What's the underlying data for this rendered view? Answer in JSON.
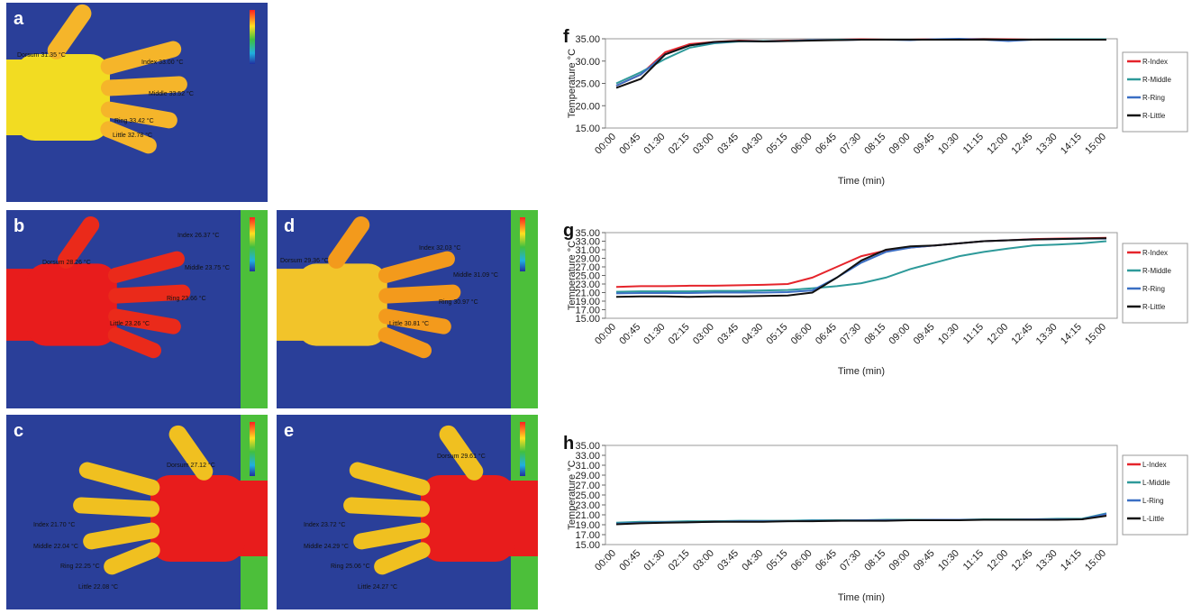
{
  "thermal_panels": [
    {
      "label": "a",
      "annotations": [
        "Dorsum 31.35 °C",
        "Index 33.00 °C",
        "Middle 33.52 °C",
        "Ring 33.42 °C",
        "Little 32.78 °C"
      ]
    },
    {
      "label": "b",
      "annotations": [
        "Dorsum 28.26 °C",
        "Index 26.37 °C",
        "Middle 23.75 °C",
        "Ring 23.66 °C",
        "Little 23.26 °C"
      ]
    },
    {
      "label": "d",
      "annotations": [
        "Dorsum 29.36 °C",
        "Index 32.03 °C",
        "Middle 31.09 °C",
        "Ring 30.97 °C",
        "Little 30.81 °C"
      ]
    },
    {
      "label": "c",
      "annotations": [
        "Dorsum 27.12 °C",
        "Index 21.70 °C",
        "Middle 22.04 °C",
        "Ring 22.25 °C",
        "Little 22.08 °C"
      ]
    },
    {
      "label": "e",
      "annotations": [
        "Dorsum 29.61 °C",
        "Index 23.72 °C",
        "Middle 24.29 °C",
        "Ring 25.06 °C",
        "Little 24.27 °C"
      ]
    }
  ],
  "chart_data": [
    {
      "type": "line",
      "title": "f",
      "x_label": "Time (min)",
      "y_label": "Temperature °C",
      "categories": [
        "00:00",
        "00:45",
        "01:30",
        "02:15",
        "03:00",
        "03:45",
        "04:30",
        "05:15",
        "06:00",
        "06:45",
        "07:30",
        "08:15",
        "09:00",
        "09:45",
        "10:30",
        "11:15",
        "12:00",
        "12:45",
        "13:30",
        "14:15",
        "15:00"
      ],
      "ylim": [
        15,
        35
      ],
      "yticks": [
        {
          "value": 15,
          "label": "15.00"
        },
        {
          "value": 20,
          "label": "20.00"
        },
        {
          "value": 25,
          "label": "25.00"
        },
        {
          "value": 30,
          "label": "30.00"
        },
        {
          "value": 35,
          "label": "35.00"
        }
      ],
      "series": [
        {
          "name": "R-Index",
          "color": "#e5242b",
          "values": [
            24.5,
            27,
            32,
            33.8,
            34.3,
            34.6,
            34.5,
            34.6,
            34.7,
            34.8,
            34.9,
            34.8,
            34.8,
            34.9,
            34.9,
            35,
            34.9,
            34.8,
            34.9,
            34.9,
            34.9
          ]
        },
        {
          "name": "R-Middle",
          "color": "#2e9a9a",
          "values": [
            25,
            27.5,
            30.5,
            33,
            34,
            34.4,
            34.5,
            34.5,
            34.7,
            34.8,
            34.8,
            34.8,
            34.8,
            34.8,
            34.9,
            34.9,
            34.8,
            34.8,
            34.9,
            34.9,
            34.9
          ]
        },
        {
          "name": "R-Ring",
          "color": "#3b6fc4",
          "values": [
            24.5,
            27,
            31.5,
            33.5,
            34.2,
            34.5,
            34.4,
            34.5,
            34.7,
            34.7,
            34.8,
            34.8,
            34.7,
            34.9,
            35,
            34.8,
            34.5,
            34.8,
            34.8,
            34.8,
            34.8
          ]
        },
        {
          "name": "R-Little",
          "color": "#111111",
          "values": [
            24,
            26,
            31.5,
            33.5,
            34.3,
            34.5,
            34.4,
            34.5,
            34.6,
            34.7,
            34.8,
            34.8,
            34.8,
            34.8,
            34.8,
            34.8,
            34.8,
            34.8,
            34.8,
            34.8,
            34.8
          ]
        }
      ]
    },
    {
      "type": "line",
      "title": "g",
      "x_label": "Time (min)",
      "y_label": "Temperature °C",
      "categories": [
        "00:00",
        "00:45",
        "01:30",
        "02:15",
        "03:00",
        "03:45",
        "04:30",
        "05:15",
        "06:00",
        "06:45",
        "07:30",
        "08:15",
        "09:00",
        "09:45",
        "10:30",
        "11:15",
        "12:00",
        "12:45",
        "13:30",
        "14:15",
        "15:00"
      ],
      "ylim": [
        15,
        35
      ],
      "yticks": [
        {
          "value": 15,
          "label": "15.00"
        },
        {
          "value": 17,
          "label": "17.00"
        },
        {
          "value": 19,
          "label": "19.00"
        },
        {
          "value": 21,
          "label": "21.00"
        },
        {
          "value": 23,
          "label": "23.00"
        },
        {
          "value": 25,
          "label": "25.00"
        },
        {
          "value": 27,
          "label": "27.00"
        },
        {
          "value": 29,
          "label": "29.00"
        },
        {
          "value": 31,
          "label": "31.00"
        },
        {
          "value": 33,
          "label": "33.00"
        },
        {
          "value": 35,
          "label": "35.00"
        }
      ],
      "series": [
        {
          "name": "R-Index",
          "color": "#e5242b",
          "values": [
            22.3,
            22.5,
            22.5,
            22.6,
            22.6,
            22.7,
            22.8,
            23,
            24.5,
            27,
            29.5,
            30.8,
            31.5,
            32,
            32.5,
            33,
            33.2,
            33.5,
            33.6,
            33.7,
            33.8
          ]
        },
        {
          "name": "R-Middle",
          "color": "#2e9a9a",
          "values": [
            21.2,
            21.3,
            21.3,
            21.3,
            21.4,
            21.4,
            21.5,
            21.6,
            22,
            22.5,
            23.2,
            24.5,
            26.5,
            28,
            29.5,
            30.5,
            31.3,
            32,
            32.2,
            32.5,
            33
          ]
        },
        {
          "name": "R-Ring",
          "color": "#3b6fc4",
          "values": [
            20.8,
            20.9,
            20.9,
            20.9,
            21,
            21,
            21,
            21.1,
            21.5,
            24.5,
            28,
            30.5,
            31.5,
            32,
            32.5,
            33,
            33.2,
            33.4,
            33.5,
            33.6,
            33.6
          ]
        },
        {
          "name": "R-Little",
          "color": "#111111",
          "values": [
            20,
            20.1,
            20.1,
            20,
            20.1,
            20.1,
            20.2,
            20.3,
            21,
            24.5,
            28.5,
            31,
            31.8,
            32,
            32.5,
            33,
            33.2,
            33.4,
            33.5,
            33.6,
            33.7
          ]
        }
      ]
    },
    {
      "type": "line",
      "title": "h",
      "x_label": "Time (min)",
      "y_label": "Temperature °C",
      "categories": [
        "00:00",
        "00:45",
        "01:30",
        "02:15",
        "03:00",
        "03:45",
        "04:30",
        "05:15",
        "06:00",
        "06:45",
        "07:30",
        "08:15",
        "09:00",
        "09:45",
        "10:30",
        "11:15",
        "12:00",
        "12:45",
        "13:30",
        "14:15",
        "15:00"
      ],
      "ylim": [
        15,
        35
      ],
      "yticks": [
        {
          "value": 15,
          "label": "15.00"
        },
        {
          "value": 17,
          "label": "17.00"
        },
        {
          "value": 19,
          "label": "19.00"
        },
        {
          "value": 21,
          "label": "21.00"
        },
        {
          "value": 23,
          "label": "23.00"
        },
        {
          "value": 25,
          "label": "25.00"
        },
        {
          "value": 27,
          "label": "27.00"
        },
        {
          "value": 29,
          "label": "29.00"
        },
        {
          "value": 31,
          "label": "31.00"
        },
        {
          "value": 33,
          "label": "33.00"
        },
        {
          "value": 35,
          "label": "35.00"
        }
      ],
      "series": [
        {
          "name": "L-Index",
          "color": "#e5242b",
          "values": [
            19.3,
            19.5,
            19.5,
            19.6,
            19.7,
            19.7,
            19.7,
            19.8,
            19.8,
            19.8,
            19.9,
            19.9,
            19.9,
            19.9,
            20,
            20,
            20,
            20,
            20.1,
            20.1,
            21
          ]
        },
        {
          "name": "L-Middle",
          "color": "#2e9a9a",
          "values": [
            19.4,
            19.6,
            19.6,
            19.7,
            19.7,
            19.8,
            19.8,
            19.8,
            19.9,
            19.9,
            19.9,
            20,
            20,
            20,
            20,
            20.1,
            20.1,
            20.1,
            20.2,
            20.2,
            21.3
          ]
        },
        {
          "name": "L-Ring",
          "color": "#3b6fc4",
          "values": [
            19.2,
            19.4,
            19.5,
            19.5,
            19.6,
            19.7,
            19.7,
            19.7,
            19.8,
            19.8,
            19.9,
            19.9,
            19.9,
            20,
            20,
            20,
            20,
            20.1,
            20.1,
            20.1,
            21.2
          ]
        },
        {
          "name": "L-Little",
          "color": "#111111",
          "values": [
            19.1,
            19.3,
            19.4,
            19.5,
            19.6,
            19.6,
            19.6,
            19.7,
            19.7,
            19.8,
            19.8,
            19.8,
            19.9,
            19.9,
            19.9,
            20,
            20,
            20,
            20,
            20.1,
            20.8
          ]
        }
      ]
    }
  ]
}
